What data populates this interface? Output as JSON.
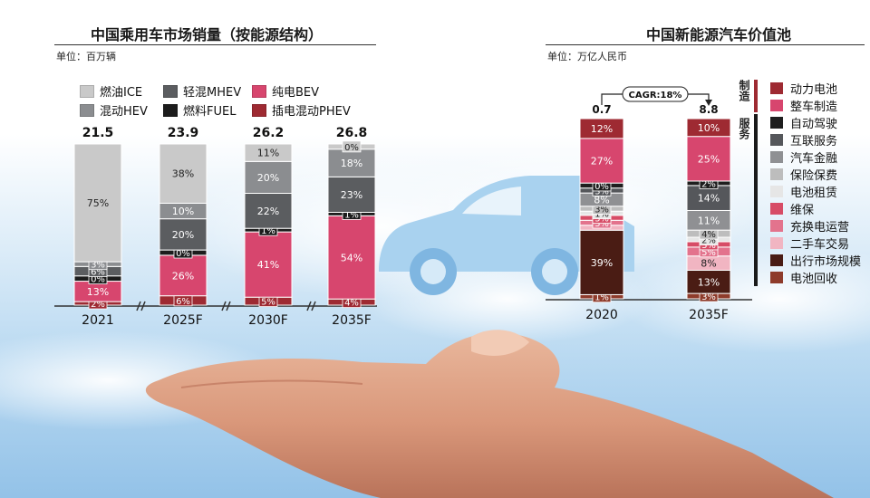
{
  "left_panel": {
    "title": "中国乘用车市场销量（按能源结构）",
    "unit": "单位：百万辆"
  },
  "right_panel": {
    "title": "中国新能源汽车价值池",
    "unit": "单位：万亿人民币",
    "cagr_label": "CAGR:18%",
    "side_labels": {
      "manufacture": "制造",
      "service": "服务"
    }
  },
  "chart_data": [
    {
      "type": "bar",
      "title": "中国乘用车市场销量（按能源结构）",
      "ylabel": "单位：百万辆",
      "categories": [
        "2021",
        "2025F",
        "2030F",
        "2035F"
      ],
      "totals": [
        21.5,
        23.9,
        26.2,
        26.8
      ],
      "series": [
        {
          "name": "插电混动PHEV",
          "color": "#9e2a32",
          "values": [
            2,
            6,
            5,
            4
          ],
          "labels": [
            "2%",
            "6%",
            "5%",
            "4%"
          ]
        },
        {
          "name": "纯电BEV",
          "color": "#d7466e",
          "values": [
            13,
            26,
            41,
            54
          ],
          "labels": [
            "13%",
            "26%",
            "41%",
            "54%"
          ]
        },
        {
          "name": "燃料FUEL",
          "color": "#1c1c1c",
          "values": [
            0,
            0,
            1,
            1
          ],
          "labels": [
            "0%",
            "0%",
            "1%",
            "1%"
          ]
        },
        {
          "name": "轻混MHEV",
          "color": "#5b5d60",
          "values": [
            6,
            20,
            22,
            23
          ],
          "labels": [
            "6%",
            "20%",
            "22%",
            "23%"
          ]
        },
        {
          "name": "混动HEV",
          "color": "#8b8d90",
          "values": [
            3,
            10,
            20,
            18
          ],
          "labels": [
            "3%",
            "10%",
            "20%",
            "18%"
          ]
        },
        {
          "name": "燃油ICE",
          "color": "#c9c9c9",
          "values": [
            75,
            38,
            11,
            0
          ],
          "labels": [
            "75%",
            "38%",
            "11%",
            "0%"
          ]
        }
      ],
      "legend": [
        "燃油ICE",
        "轻混MHEV",
        "纯电BEV",
        "混动HEV",
        "燃料FUEL",
        "插电混动PHEV"
      ]
    },
    {
      "type": "bar",
      "title": "中国新能源汽车价值池",
      "ylabel": "单位：万亿人民币",
      "categories": [
        "2020",
        "2035F"
      ],
      "totals": [
        0.7,
        8.8
      ],
      "annotation": "CAGR:18%",
      "series": [
        {
          "name": "电池回收",
          "color": "#8e3b2b",
          "values": [
            1,
            3
          ],
          "labels": [
            "1%",
            "3%"
          ]
        },
        {
          "name": "出行市场规模",
          "color": "#4a1c14",
          "values": [
            39,
            13
          ],
          "labels": [
            "39%",
            "13%"
          ]
        },
        {
          "name": "二手车交易",
          "color": "#f1b5c2",
          "values": [
            0,
            8
          ],
          "labels": [
            "",
            "8%"
          ]
        },
        {
          "name": "充换电运营",
          "color": "#e3738d",
          "values": [
            3,
            5
          ],
          "labels": [
            "3%",
            "5%"
          ]
        },
        {
          "name": "维保",
          "color": "#d74c66",
          "values": [
            3,
            3
          ],
          "labels": [
            "3%",
            "3%"
          ]
        },
        {
          "name": "电池租赁",
          "color": "#e6e6e6",
          "values": [
            1,
            2
          ],
          "labels": [
            "1%",
            "2%"
          ]
        },
        {
          "name": "保险保费",
          "color": "#bdbdbd",
          "values": [
            3,
            4
          ],
          "labels": [
            "3%",
            "4%"
          ]
        },
        {
          "name": "汽车金融",
          "color": "#8f9093",
          "values": [
            8,
            11
          ],
          "labels": [
            "8%",
            "11%"
          ]
        },
        {
          "name": "互联服务",
          "color": "#55575b",
          "values": [
            3,
            14
          ],
          "labels": [
            "3%",
            "14%"
          ]
        },
        {
          "name": "自动驾驶",
          "color": "#1e1e1e",
          "values": [
            0,
            2
          ],
          "labels": [
            "0%",
            "2%"
          ]
        },
        {
          "name": "整车制造",
          "color": "#d7466e",
          "values": [
            27,
            25
          ],
          "labels": [
            "27%",
            "25%"
          ]
        },
        {
          "name": "动力电池",
          "color": "#9e2a32",
          "values": [
            12,
            10
          ],
          "labels": [
            "12%",
            "10%"
          ]
        }
      ],
      "legend": [
        "动力电池",
        "整车制造",
        "自动驾驶",
        "互联服务",
        "汽车金融",
        "保险保费",
        "电池租赁",
        "维保",
        "充换电运营",
        "二手车交易",
        "出行市场规模",
        "电池回收"
      ]
    }
  ]
}
